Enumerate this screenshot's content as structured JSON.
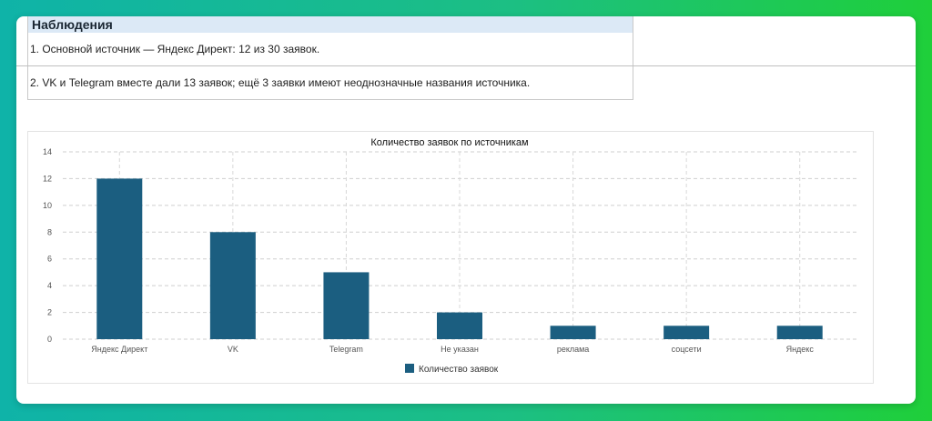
{
  "observations": {
    "title": "Наблюдения",
    "items": [
      "1. Основной источник — Яндекс Директ: 12 из 30 заявок.",
      "2. VK и Telegram вместе дали 13 заявок; ещё 3 заявки имеют неоднозначные названия источника."
    ]
  },
  "chart_data": {
    "type": "bar",
    "title": "Количество заявок по источникам",
    "categories": [
      "Яндекс Директ",
      "VK",
      "Telegram",
      "Не указан",
      "реклама",
      "соцсети",
      "Яндекс"
    ],
    "series": [
      {
        "name": "Количество заявок",
        "values": [
          12,
          8,
          5,
          2,
          1,
          1,
          1
        ],
        "color": "#1b5e80"
      }
    ],
    "ylim": [
      0,
      14
    ],
    "yticks": [
      0,
      2,
      4,
      6,
      8,
      10,
      12,
      14
    ],
    "grid": true,
    "legend_position": "bottom"
  }
}
